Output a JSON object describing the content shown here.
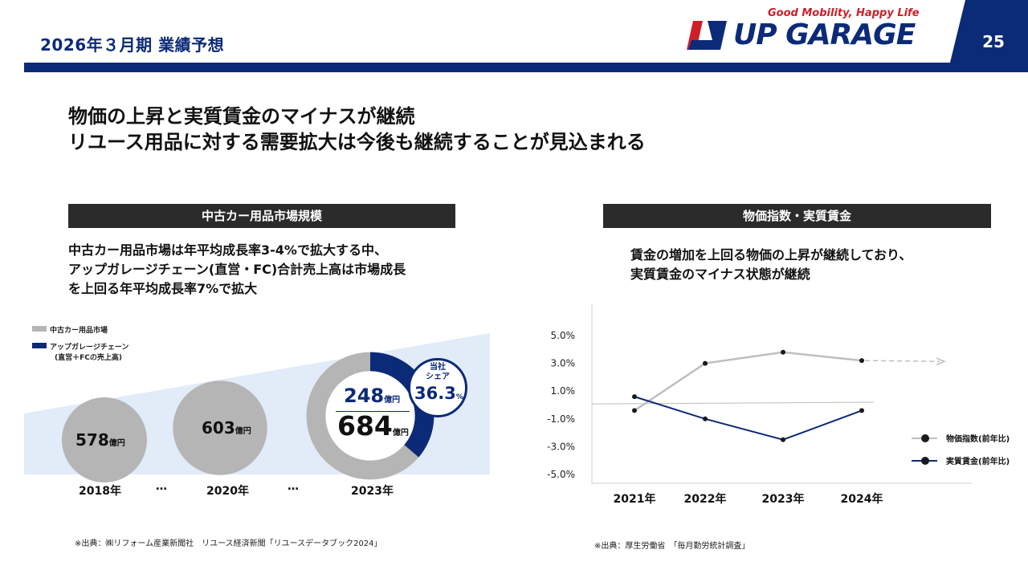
{
  "header": {
    "title": "2026年３月期 業績予想",
    "tagline": "Good Mobility, Happy Life",
    "logo_text": "UP GARAGE",
    "page_number": "25"
  },
  "headline": {
    "line1": "物価の上昇と実質賃金のマイナスが継続",
    "line2": "リユース用品に対する需要拡大は今後も継続することが見込まれる"
  },
  "left_panel": {
    "section_title": "中古カー用品市場規模",
    "description": [
      "中古カー用品市場は年平均成長率3-4%で拡大する中、",
      "アップガレージチェーン(直営・FC)合計売上高は市場成長",
      "を上回る年平均成長率7%で拡大"
    ],
    "legend": {
      "market": "中古カー用品市場",
      "chain": "アップガレージチェーン",
      "chain_note": "(直営＋FCの売上高)"
    },
    "ellipsis": "…",
    "unit": "億円",
    "share_label": "当社\nシェア",
    "share_value": "36.3",
    "share_unit": "%",
    "source": "※出典：㈱リフォーム産業新聞社　リユース経済新聞「リユースデータブック2024」"
  },
  "right_panel": {
    "section_title": "物価指数・実質賃金",
    "description": [
      "賃金の増加を上回る物価の上昇が継続しており、",
      "実質賃金のマイナス状態が継続"
    ],
    "source": "※出典：厚生労働省　「毎月勤労統計調査」"
  },
  "colors": {
    "brand_navy": "#0b2a78",
    "brand_red": "#cc1f2a",
    "market_gray": "#b5b5b5",
    "band_light_blue": "#e2ebf8",
    "section_header_bg": "#2b2b2b"
  },
  "chart_data": [
    {
      "type": "bar",
      "categories": [
        "2018年",
        "2020年",
        "2023年"
      ],
      "series": [
        {
          "name": "中古カー用品市場",
          "values": [
            578,
            603,
            684
          ],
          "value_labels": [
            "578",
            "603",
            "684"
          ]
        },
        {
          "name": "アップガレージチェーン",
          "values": [
            null,
            null,
            248
          ],
          "value_labels": [
            "",
            "",
            "248"
          ]
        }
      ],
      "share_2023_percent": 36.3
    },
    {
      "type": "line",
      "x": [
        "2021年",
        "2022年",
        "2023年",
        "2024年"
      ],
      "series": [
        {
          "name": "物価指数(前年比)",
          "values": [
            -0.4,
            3.0,
            3.8,
            3.2
          ],
          "color": "#bfbfbf",
          "trend_continues": true
        },
        {
          "name": "実質賃金(前年比)",
          "values": [
            0.6,
            -1.0,
            -2.5,
            -0.4
          ],
          "color": "#0b2a78"
        }
      ],
      "y_ticks": [
        "5.0%",
        "3.0%",
        "1.0%",
        "-1.0%",
        "-3.0%",
        "-5.0%"
      ],
      "y_tick_values": [
        5,
        3,
        1,
        -1,
        -3,
        -5
      ],
      "ylim": [
        -5,
        5
      ],
      "legend_position": "right"
    }
  ]
}
